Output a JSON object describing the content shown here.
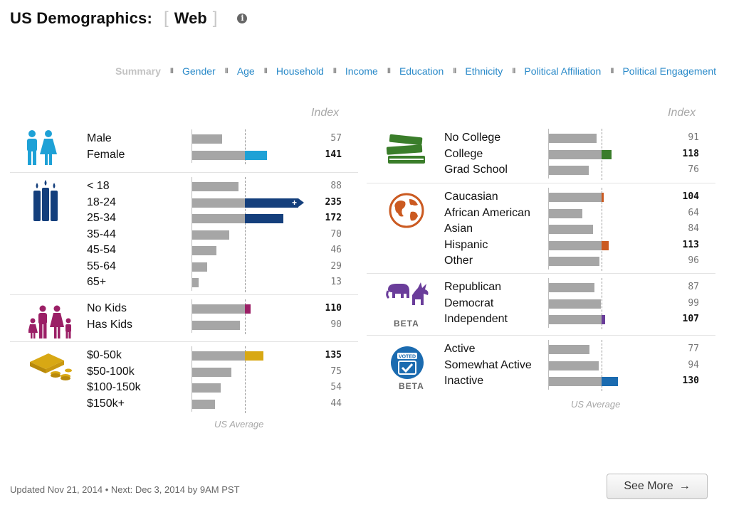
{
  "header": {
    "title": "US Demographics:",
    "bracket_open": "[",
    "platform": "Web",
    "bracket_close": "]",
    "info_glyph": "i"
  },
  "nav": {
    "items": [
      "Summary",
      "Gender",
      "Age",
      "Household",
      "Income",
      "Education",
      "Ethnicity",
      "Political Affiliation",
      "Political Engagement"
    ],
    "active": "Summary",
    "separator": "II"
  },
  "index_label": "Index",
  "us_average_label": "US Average",
  "colors": {
    "gender": "#1ea1d6",
    "age": "#143f7c",
    "household": "#9b1f66",
    "income": "#d8a814",
    "education": "#3a7d2a",
    "ethnicity": "#cb5a21",
    "political": "#6a3d9a",
    "engagement": "#1b6bb0"
  },
  "chart_data": {
    "type": "bar",
    "baseline": 100,
    "xlabel": "US Average",
    "ylabel": "Index",
    "sections": [
      {
        "name": "Gender",
        "icon": "family-icon",
        "color": "#1ea1d6",
        "categories": [
          "Male",
          "Female"
        ],
        "values": [
          57,
          141
        ]
      },
      {
        "name": "Age",
        "icon": "candles-icon",
        "color": "#143f7c",
        "categories": [
          "< 18",
          "18-24",
          "25-34",
          "35-44",
          "45-54",
          "55-64",
          "65+"
        ],
        "values": [
          88,
          235,
          172,
          70,
          46,
          29,
          13
        ]
      },
      {
        "name": "Household",
        "icon": "family-kids-icon",
        "color": "#9b1f66",
        "categories": [
          "No Kids",
          "Has Kids"
        ],
        "values": [
          110,
          90
        ]
      },
      {
        "name": "Income",
        "icon": "money-icon",
        "color": "#d8a814",
        "categories": [
          "$0-50k",
          "$50-100k",
          "$100-150k",
          "$150k+"
        ],
        "values": [
          135,
          75,
          54,
          44
        ]
      },
      {
        "name": "Education",
        "icon": "books-icon",
        "color": "#3a7d2a",
        "categories": [
          "No College",
          "College",
          "Grad School"
        ],
        "values": [
          91,
          118,
          76
        ]
      },
      {
        "name": "Ethnicity",
        "icon": "globe-icon",
        "color": "#cb5a21",
        "categories": [
          "Caucasian",
          "African American",
          "Asian",
          "Hispanic",
          "Other"
        ],
        "values": [
          104,
          64,
          84,
          113,
          96
        ]
      },
      {
        "name": "Political Affiliation",
        "icon": "elephant-donkey-icon",
        "color": "#6a3d9a",
        "beta": "BETA",
        "categories": [
          "Republican",
          "Democrat",
          "Independent"
        ],
        "values": [
          87,
          99,
          107
        ]
      },
      {
        "name": "Political Engagement",
        "icon": "voted-icon",
        "color": "#1b6bb0",
        "beta": "BETA",
        "badge_text": "VOTED",
        "categories": [
          "Active",
          "Somewhat Active",
          "Inactive"
        ],
        "values": [
          77,
          94,
          130
        ]
      }
    ]
  },
  "footer": {
    "updated_text": "Updated Nov 21, 2014 • Next: Dec 3, 2014 by 9AM PST"
  },
  "see_more": {
    "label": "See More",
    "arrow": "→"
  }
}
